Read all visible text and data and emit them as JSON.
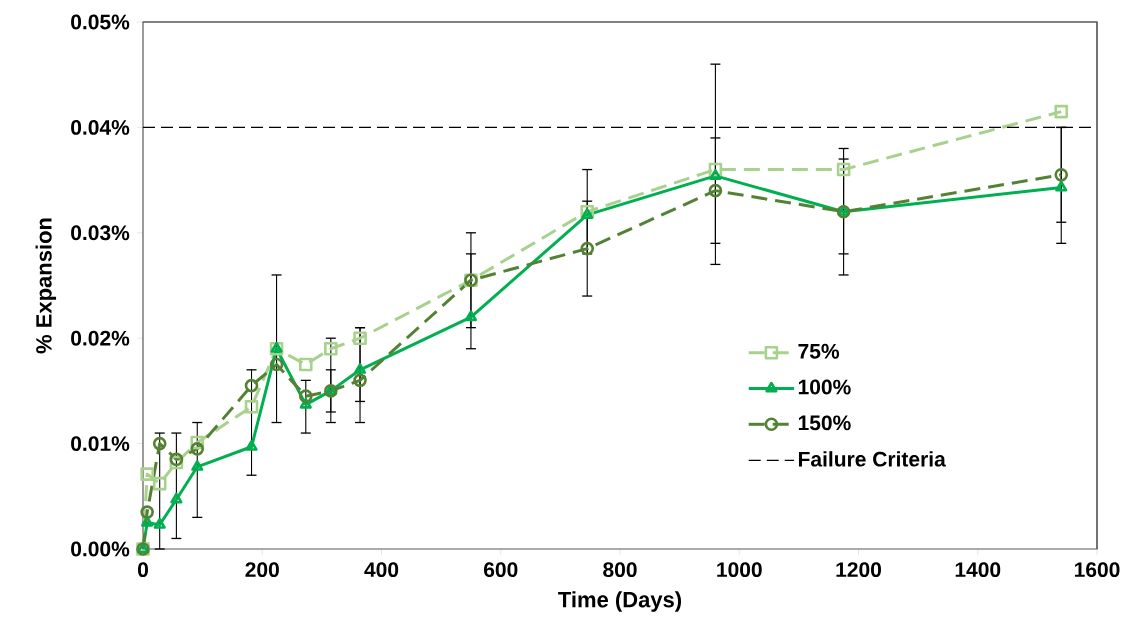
{
  "chart_data": {
    "type": "line",
    "xlabel": "Time (Days)",
    "ylabel": "% Expansion",
    "xlim": [
      0,
      1600
    ],
    "xticks": [
      0,
      200,
      400,
      600,
      800,
      1000,
      1200,
      1400,
      1600
    ],
    "ylim": [
      0,
      0.05
    ],
    "yticks": [
      {
        "value": 0,
        "label": "0.00%"
      },
      {
        "value": 0.01,
        "label": "0.01%"
      },
      {
        "value": 0.02,
        "label": "0.02%"
      },
      {
        "value": 0.03,
        "label": "0.03%"
      },
      {
        "value": 0.04,
        "label": "0.04%"
      },
      {
        "value": 0.05,
        "label": "0.05%"
      }
    ],
    "x": [
      0,
      7,
      28,
      56,
      91,
      182,
      224,
      273,
      315,
      364,
      550,
      745,
      960,
      1175,
      1540
    ],
    "series": [
      {
        "name": "75%",
        "color": "#a9d18e",
        "marker": "square",
        "line_style": "dashed",
        "values": [
          0,
          0.0071,
          0.0062,
          0.0082,
          0.0101,
          0.0135,
          0.019,
          0.0175,
          0.019,
          0.02,
          0.0255,
          0.032,
          0.036,
          0.036,
          0.0415
        ]
      },
      {
        "name": "100%",
        "color": "#00b050",
        "marker": "triangle",
        "line_style": "solid",
        "values": [
          0,
          0.0025,
          0.0023,
          0.0047,
          0.0078,
          0.0097,
          0.019,
          0.0137,
          0.015,
          0.017,
          0.022,
          0.0317,
          0.0354,
          0.032,
          0.0343
        ],
        "errors": [
          null,
          null,
          [
            0,
            0.011
          ],
          [
            0.001,
            0.011
          ],
          [
            0.003,
            0.012
          ],
          [
            0.007,
            0.017
          ],
          [
            0.012,
            0.026
          ],
          [
            0.011,
            0.016
          ],
          [
            0.012,
            0.02
          ],
          [
            0.012,
            0.021
          ],
          [
            0.019,
            0.03
          ],
          [
            0.028,
            0.036
          ],
          [
            0.027,
            0.046
          ],
          [
            0.026,
            0.038
          ],
          [
            0.029,
            0.04
          ]
        ]
      },
      {
        "name": "150%",
        "color": "#548235",
        "marker": "circle",
        "line_style": "dashed",
        "values": [
          0,
          0.0035,
          0.01,
          0.0085,
          0.0095,
          0.0155,
          0.0175,
          0.0145,
          0.015,
          0.016,
          0.0255,
          0.0285,
          0.034,
          0.032,
          0.0355
        ],
        "errors": [
          null,
          null,
          null,
          null,
          null,
          null,
          null,
          null,
          [
            0.013,
            0.017
          ],
          [
            0.014,
            0.021
          ],
          [
            0.021,
            0.028
          ],
          [
            0.024,
            0.033
          ],
          [
            0.029,
            0.039
          ],
          [
            0.028,
            0.037
          ],
          [
            0.031,
            0.04
          ]
        ]
      }
    ],
    "ref_lines": [
      {
        "axis": "y",
        "value": 0.04,
        "label": "Failure Criteria",
        "color": "#000000",
        "line_style": "dashed"
      }
    ],
    "legend": "right"
  }
}
